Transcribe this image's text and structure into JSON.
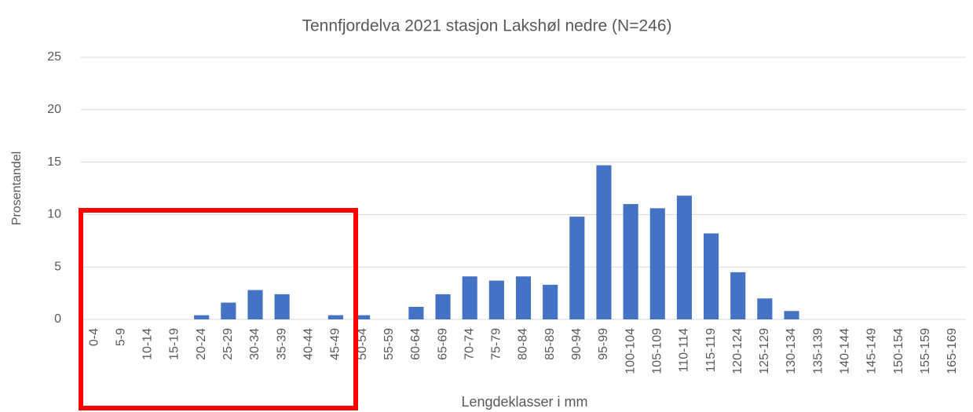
{
  "chart_data": {
    "type": "bar",
    "title": "Tennfjordelva 2021 stasjon Lakshøl nedre (N=246)",
    "x_label": "Lengdeklasser i mm",
    "y_label": "Prosentandel",
    "categories": [
      "0-4",
      "5-9",
      "10-14",
      "15-19",
      "20-24",
      "25-29",
      "30-34",
      "35-39",
      "40-44",
      "45-49",
      "50-54",
      "55-59",
      "60-64",
      "65-69",
      "70-74",
      "75-79",
      "80-84",
      "85-89",
      "90-94",
      "95-99",
      "100-104",
      "105-109",
      "110-114",
      "115-119",
      "120-124",
      "125-129",
      "130-134",
      "135-139",
      "140-144",
      "145-149",
      "150-154",
      "155-159",
      "165-169"
    ],
    "values": [
      0,
      0,
      0,
      0,
      0.4,
      1.6,
      2.8,
      2.4,
      0,
      0.4,
      0.4,
      0,
      1.2,
      2.4,
      4.1,
      3.7,
      4.1,
      3.3,
      9.8,
      14.7,
      11.0,
      10.6,
      11.8,
      8.2,
      4.5,
      2.0,
      0.8,
      0,
      0,
      0,
      0,
      0,
      0
    ],
    "color": "#4472c4",
    "ylim": [
      0,
      25
    ],
    "yticks": [
      0,
      5,
      10,
      15,
      20,
      25
    ],
    "grid": true
  }
}
